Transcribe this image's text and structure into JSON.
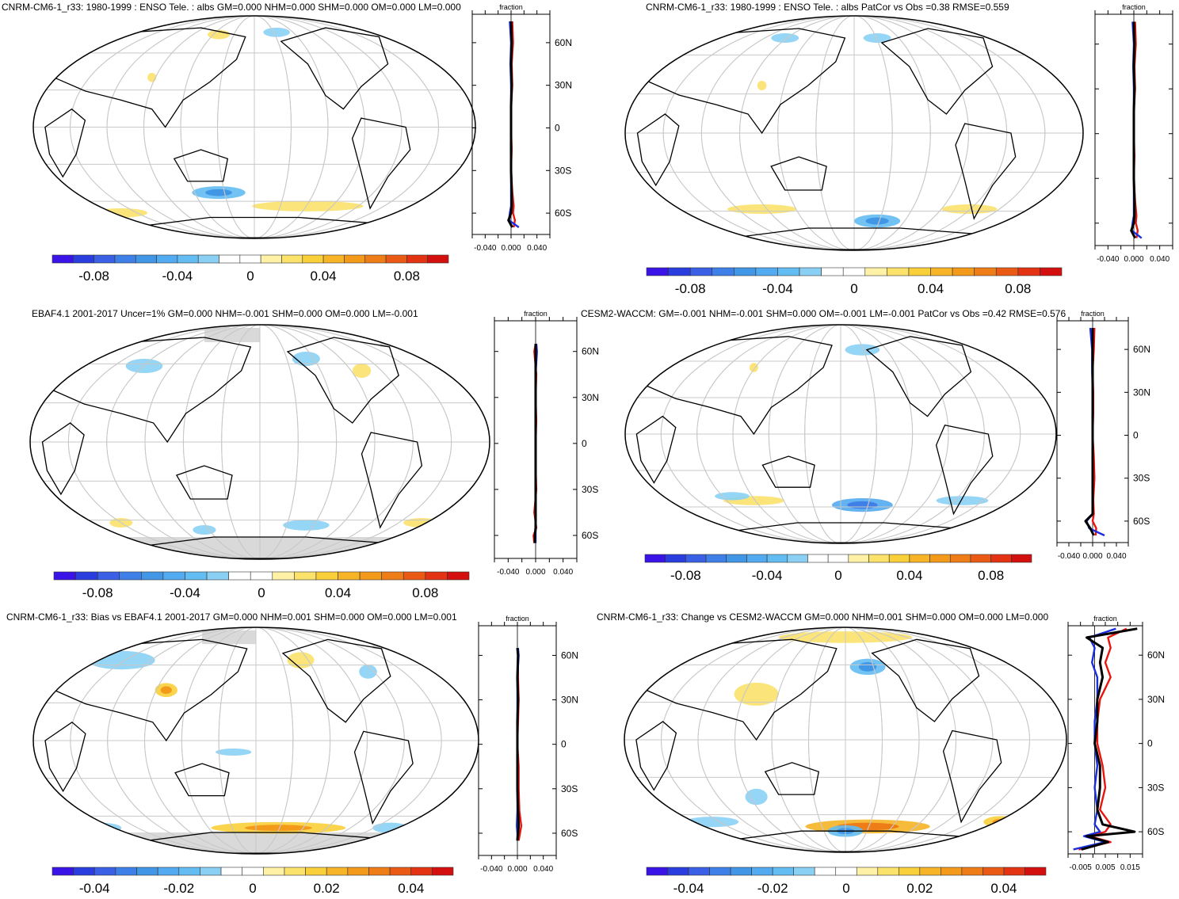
{
  "panels": [
    {
      "title": "CNRM-CM6-1_r33: 1980-1999 : ENSO Tele. : albs GM=0.000 NHM=0.000 SHM=0.000 OM=0.000 LM=0.000",
      "colorbar_ticks": [
        "-0.08",
        "-0.04",
        "0",
        "0.04",
        "0.08"
      ],
      "zonal_xlabel": "fraction",
      "zonal_xticks": [
        "-0.040",
        "0.000",
        "0.040"
      ],
      "zonal_lat_labels": [
        "60N",
        "30N",
        "0",
        "30S",
        "60S"
      ]
    },
    {
      "title": "CNRM-CM6-1_r33: 1980-1999 : ENSO Tele. : albs PatCor vs Obs =0.38 RMSE=0.559",
      "colorbar_ticks": [
        "-0.08",
        "-0.04",
        "0",
        "0.04",
        "0.08"
      ],
      "zonal_xlabel": "fraction",
      "zonal_xticks": [
        "-0.040",
        "0.000",
        "0.040"
      ],
      "zonal_lat_labels": []
    },
    {
      "title": "EBAF4.1 2001-2017 Uncer=1% GM=0.000 NHM=-0.001 SHM=0.000 OM=0.000 LM=-0.001",
      "colorbar_ticks": [
        "-0.08",
        "-0.04",
        "0",
        "0.04",
        "0.08"
      ],
      "zonal_xlabel": "fraction",
      "zonal_xticks": [
        "-0.040",
        "0.000",
        "0.040"
      ],
      "zonal_lat_labels": [
        "60N",
        "30N",
        "0",
        "30S",
        "60S"
      ]
    },
    {
      "title": "CESM2-WACCM: GM=-0.001 NHM=-0.001 SHM=0.000 OM=-0.001 LM=-0.001 PatCor vs Obs =0.42 RMSE=0.576",
      "colorbar_ticks": [
        "-0.08",
        "-0.04",
        "0",
        "0.04",
        "0.08"
      ],
      "zonal_xlabel": "fraction",
      "zonal_xticks": [
        "-0.040",
        "0.000",
        "0.040"
      ],
      "zonal_lat_labels": [
        "60N",
        "30N",
        "0",
        "30S",
        "60S"
      ]
    },
    {
      "title": "CNRM-CM6-1_r33: Bias vs EBAF4.1 2001-2017 GM=0.000 NHM=0.001 SHM=0.000 OM=0.000 LM=0.001",
      "colorbar_ticks": [
        "-0.04",
        "-0.02",
        "0",
        "0.02",
        "0.04"
      ],
      "zonal_xlabel": "fraction",
      "zonal_xticks": [
        "-0.040",
        "0.000",
        "0.040"
      ],
      "zonal_lat_labels": [
        "60N",
        "30N",
        "0",
        "30S",
        "60S"
      ]
    },
    {
      "title": "CNRM-CM6-1_r33: Change vs CESM2-WACCM GM=0.000 NHM=0.001 SHM=0.000 OM=0.000 LM=0.000",
      "colorbar_ticks": [
        "-0.04",
        "-0.02",
        "0",
        "0.02",
        "0.04"
      ],
      "zonal_xlabel": "fraction",
      "zonal_xticks": [
        "-0.005",
        "0.005",
        "0.015"
      ],
      "zonal_lat_labels": [
        "60N",
        "30N",
        "0",
        "30S",
        "60S"
      ]
    }
  ],
  "colors": {
    "series_red": "#e8150f",
    "series_blue": "#1a2ee0",
    "series_black": "#000000",
    "grid": "#c8c8c8",
    "land_missing": "#d9d9d9",
    "colorbar": [
      "#3a13e6",
      "#2a3ee0",
      "#3a60e6",
      "#3f7fe8",
      "#4196e6",
      "#52aaf0",
      "#63bcf2",
      "#8ad0f5",
      "#ffffff",
      "#ffffff",
      "#fff2a6",
      "#fbe26b",
      "#f9cf3a",
      "#f6b426",
      "#f39a1b",
      "#ef7d17",
      "#ea5a14",
      "#e33312",
      "#d4100f"
    ]
  },
  "chart_data": [
    {
      "type": "heatmap",
      "title": "CNRM-CM6-1_r33: 1980-1999 : ENSO Tele. : albs GM=0.000 NHM=0.000 SHM=0.000 OM=0.000 LM=0.000",
      "colorbar_range": [
        -0.1,
        0.1
      ],
      "zonal_mean": {
        "xlabel": "fraction",
        "xlim": [
          -0.06,
          0.06
        ],
        "ylim": [
          -75,
          80
        ],
        "lat": [
          75,
          60,
          45,
          30,
          15,
          0,
          -15,
          -30,
          -45,
          -55,
          -60,
          -65,
          -70
        ],
        "series": [
          {
            "values": [
              0.002,
              0.003,
              0.001,
              0.002,
              0.0,
              0.0,
              0.001,
              0.0,
              0.002,
              0.004,
              0.003,
              0.006,
              0.004
            ]
          },
          {
            "values": [
              -0.002,
              0.0,
              -0.001,
              0.0,
              0.0,
              0.0,
              0.0,
              0.0,
              0.0,
              0.0,
              -0.002,
              -0.003,
              0.012
            ]
          },
          {
            "values": [
              0.0,
              0.001,
              0.0,
              0.001,
              0.0,
              0.0,
              0.0,
              0.0,
              0.001,
              0.001,
              0.0,
              -0.004,
              0.002
            ]
          }
        ]
      }
    },
    {
      "type": "heatmap",
      "title": "CNRM-CM6-1_r33: 1980-1999 : ENSO Tele. : albs PatCor vs Obs =0.38 RMSE=0.559",
      "colorbar_range": [
        -0.1,
        0.1
      ],
      "zonal_mean": {
        "xlabel": "fraction",
        "xlim": [
          -0.06,
          0.06
        ],
        "ylim": [
          -75,
          80
        ],
        "lat": [
          75,
          60,
          45,
          30,
          15,
          0,
          -15,
          -30,
          -45,
          -55,
          -60,
          -65,
          -70
        ],
        "series": [
          {
            "values": [
              0.002,
              0.003,
              0.001,
              0.002,
              0.0,
              0.0,
              0.001,
              0.0,
              0.002,
              0.004,
              0.003,
              0.006,
              0.004
            ]
          },
          {
            "values": [
              -0.002,
              0.0,
              -0.001,
              0.0,
              0.0,
              0.0,
              0.0,
              0.0,
              0.0,
              0.0,
              -0.002,
              -0.003,
              0.012
            ]
          },
          {
            "values": [
              0.0,
              0.001,
              0.0,
              0.001,
              0.0,
              0.0,
              0.0,
              0.0,
              0.001,
              0.001,
              0.0,
              -0.004,
              0.002
            ]
          }
        ]
      }
    },
    {
      "type": "heatmap",
      "title": "EBAF4.1 2001-2017 Uncer=1% GM=0.000 NHM=-0.001 SHM=0.000 OM=0.000 LM=-0.001",
      "colorbar_range": [
        -0.1,
        0.1
      ],
      "zonal_mean": {
        "xlabel": "fraction",
        "xlim": [
          -0.06,
          0.06
        ],
        "ylim": [
          -75,
          80
        ],
        "lat": [
          65,
          60,
          45,
          30,
          15,
          0,
          -15,
          -30,
          -45,
          -55,
          -60,
          -65
        ],
        "series": [
          {
            "values": [
              0.0,
              -0.002,
              0.001,
              0.0,
              0.001,
              0.0,
              0.0,
              0.001,
              -0.002,
              0.001,
              -0.003,
              -0.002
            ]
          },
          {
            "values": [
              0.001,
              0.002,
              0.0,
              0.0,
              0.0,
              0.0,
              0.0,
              0.0,
              0.0,
              0.0,
              0.0,
              0.0
            ]
          },
          {
            "values": [
              0.0,
              0.0,
              0.0,
              0.0,
              0.0,
              0.0,
              0.0,
              0.0,
              0.0,
              0.0,
              -0.001,
              -0.001
            ]
          }
        ]
      }
    },
    {
      "type": "heatmap",
      "title": "CESM2-WACCM: GM=-0.001 NHM=-0.001 SHM=0.000 OM=-0.001 LM=-0.001 PatCor vs Obs =0.42 RMSE=0.576",
      "colorbar_range": [
        -0.1,
        0.1
      ],
      "zonal_mean": {
        "xlabel": "fraction",
        "xlim": [
          -0.06,
          0.06
        ],
        "ylim": [
          -75,
          80
        ],
        "lat": [
          75,
          60,
          45,
          30,
          15,
          0,
          -15,
          -30,
          -45,
          -55,
          -60,
          -65,
          -70
        ],
        "series": [
          {
            "values": [
              0.003,
              0.002,
              0.0,
              0.001,
              0.001,
              0.0,
              0.002,
              0.003,
              0.001,
              0.002,
              0.0,
              0.006,
              0.005
            ]
          },
          {
            "values": [
              -0.004,
              -0.001,
              -0.001,
              0.0,
              0.0,
              0.0,
              0.0,
              0.0,
              0.0,
              0.0,
              -0.01,
              -0.006,
              0.02
            ]
          },
          {
            "values": [
              0.0,
              0.0,
              0.0,
              0.0,
              0.0,
              0.0,
              0.0,
              0.0,
              0.0,
              0.0,
              -0.012,
              -0.004,
              0.002
            ]
          }
        ]
      }
    },
    {
      "type": "heatmap",
      "title": "CNRM-CM6-1_r33: Bias vs EBAF4.1 2001-2017 GM=0.000 NHM=0.001 SHM=0.000 OM=0.000 LM=0.001",
      "colorbar_range": [
        -0.05,
        0.05
      ],
      "zonal_mean": {
        "xlabel": "fraction",
        "xlim": [
          -0.06,
          0.06
        ],
        "ylim": [
          -75,
          80
        ],
        "lat": [
          65,
          60,
          45,
          30,
          15,
          0,
          -15,
          -30,
          -45,
          -55,
          -60,
          -65
        ],
        "series": [
          {
            "values": [
              0.0,
              0.001,
              0.001,
              0.002,
              0.001,
              0.0,
              0.002,
              0.002,
              0.003,
              0.006,
              0.004,
              0.002
            ]
          },
          {
            "values": [
              0.001,
              0.002,
              0.0,
              0.0,
              0.0,
              0.0,
              0.0,
              0.0,
              0.0,
              -0.001,
              0.0,
              0.0
            ]
          },
          {
            "values": [
              0.0,
              0.001,
              0.0,
              0.001,
              0.0,
              0.0,
              0.0,
              0.0,
              0.001,
              0.002,
              0.001,
              0.0
            ]
          }
        ]
      }
    },
    {
      "type": "heatmap",
      "title": "CNRM-CM6-1_r33: Change vs CESM2-WACCM GM=0.000 NHM=0.001 SHM=0.000 OM=0.000 LM=0.000",
      "colorbar_range": [
        -0.05,
        0.05
      ],
      "zonal_mean": {
        "xlabel": "fraction",
        "xlim": [
          -0.01,
          0.018
        ],
        "ylim": [
          -75,
          80
        ],
        "lat": [
          78,
          72,
          65,
          55,
          45,
          30,
          15,
          0,
          -15,
          -30,
          -45,
          -55,
          -60,
          -63,
          -67,
          -72
        ],
        "series": [
          {
            "values": [
              0.012,
              0.005,
              0.006,
              0.004,
              0.006,
              0.002,
              0.001,
              0.001,
              0.003,
              0.004,
              0.002,
              0.006,
              0.004,
              -0.002,
              0.006,
              -0.006
            ]
          },
          {
            "values": [
              0.008,
              -0.002,
              0.0,
              -0.001,
              0.001,
              0.001,
              0.0,
              0.0,
              0.001,
              0.0,
              0.001,
              0.0,
              0.002,
              -0.004,
              0.004,
              -0.008
            ]
          },
          {
            "values": [
              0.016,
              -0.003,
              0.003,
              0.002,
              0.003,
              0.001,
              0.001,
              0.0,
              0.002,
              0.002,
              0.001,
              0.003,
              0.015,
              -0.003,
              0.005,
              -0.005
            ]
          }
        ]
      }
    }
  ]
}
